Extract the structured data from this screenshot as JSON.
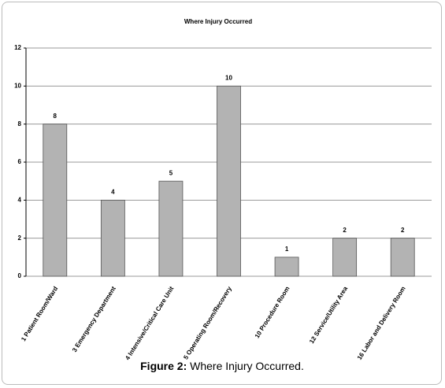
{
  "chart_data": {
    "type": "bar",
    "title": "Where Injury Occurred",
    "categories": [
      "1 Patient Room/Ward",
      "3 Emergency Department",
      "4 Intensive/Critical Care Unit",
      "5 Operating Room/Recovery",
      "10 Procedure Room",
      "12 Service/Utility Area",
      "16 Labor and Delivery Room"
    ],
    "values": [
      8,
      4,
      5,
      10,
      1,
      2,
      2
    ],
    "color": "#b3b3b3",
    "ylim": [
      0,
      12
    ],
    "yticks": [
      0,
      2,
      4,
      6,
      8,
      10,
      12
    ],
    "grid": true
  },
  "figure_label": "Figure 2:",
  "caption": "Where Injury Occurred."
}
